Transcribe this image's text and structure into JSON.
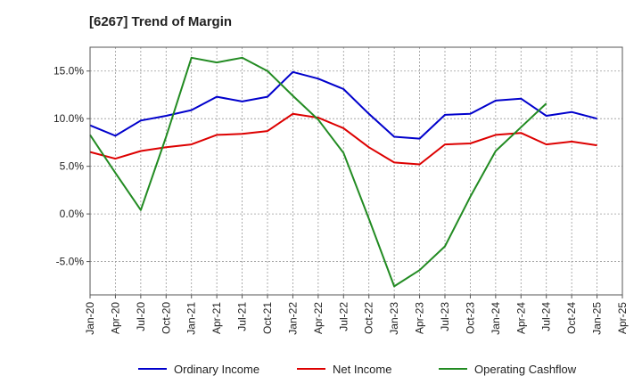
{
  "chart_data": {
    "type": "line",
    "title": "[6267]  Trend of Margin",
    "xlabel": "",
    "ylabel": "",
    "x_ticks": [
      "Jan-20",
      "Apr-20",
      "Jul-20",
      "Oct-20",
      "Jan-21",
      "Apr-21",
      "Jul-21",
      "Oct-21",
      "Jan-22",
      "Apr-22",
      "Jul-22",
      "Oct-22",
      "Jan-23",
      "Apr-23",
      "Jul-23",
      "Oct-23",
      "Jan-24",
      "Apr-24",
      "Jul-24",
      "Oct-24",
      "Jan-25",
      "Apr-25"
    ],
    "y_ticks": [
      -5.0,
      0.0,
      5.0,
      10.0,
      15.0
    ],
    "y_tick_labels": [
      "-5.0%",
      "0.0%",
      "5.0%",
      "10.0%",
      "15.0%"
    ],
    "ylim": [
      -8.5,
      17.5
    ],
    "grid": true,
    "legend_position": "bottom",
    "series": [
      {
        "name": "Ordinary Income",
        "color": "#0000cc",
        "values": [
          9.3,
          8.2,
          9.8,
          10.3,
          10.9,
          12.3,
          11.8,
          12.3,
          14.9,
          14.2,
          13.1,
          10.5,
          8.1,
          7.9,
          10.4,
          10.5,
          11.9,
          12.1,
          10.3,
          10.7,
          10.0
        ]
      },
      {
        "name": "Net Income",
        "color": "#dd0000",
        "values": [
          6.5,
          5.8,
          6.6,
          7.0,
          7.3,
          8.3,
          8.4,
          8.7,
          10.5,
          10.1,
          9.0,
          7.0,
          5.4,
          5.2,
          7.3,
          7.4,
          8.3,
          8.5,
          7.3,
          7.6,
          7.2
        ]
      },
      {
        "name": "Operating Cashflow",
        "color": "#228b22",
        "values": [
          8.3,
          4.3,
          0.4,
          8.1,
          16.4,
          15.9,
          16.4,
          15.0,
          12.4,
          9.9,
          6.4,
          -0.5,
          -7.6,
          -5.9,
          -3.4,
          1.8,
          6.6,
          9.1,
          11.6,
          null,
          null
        ]
      }
    ]
  }
}
